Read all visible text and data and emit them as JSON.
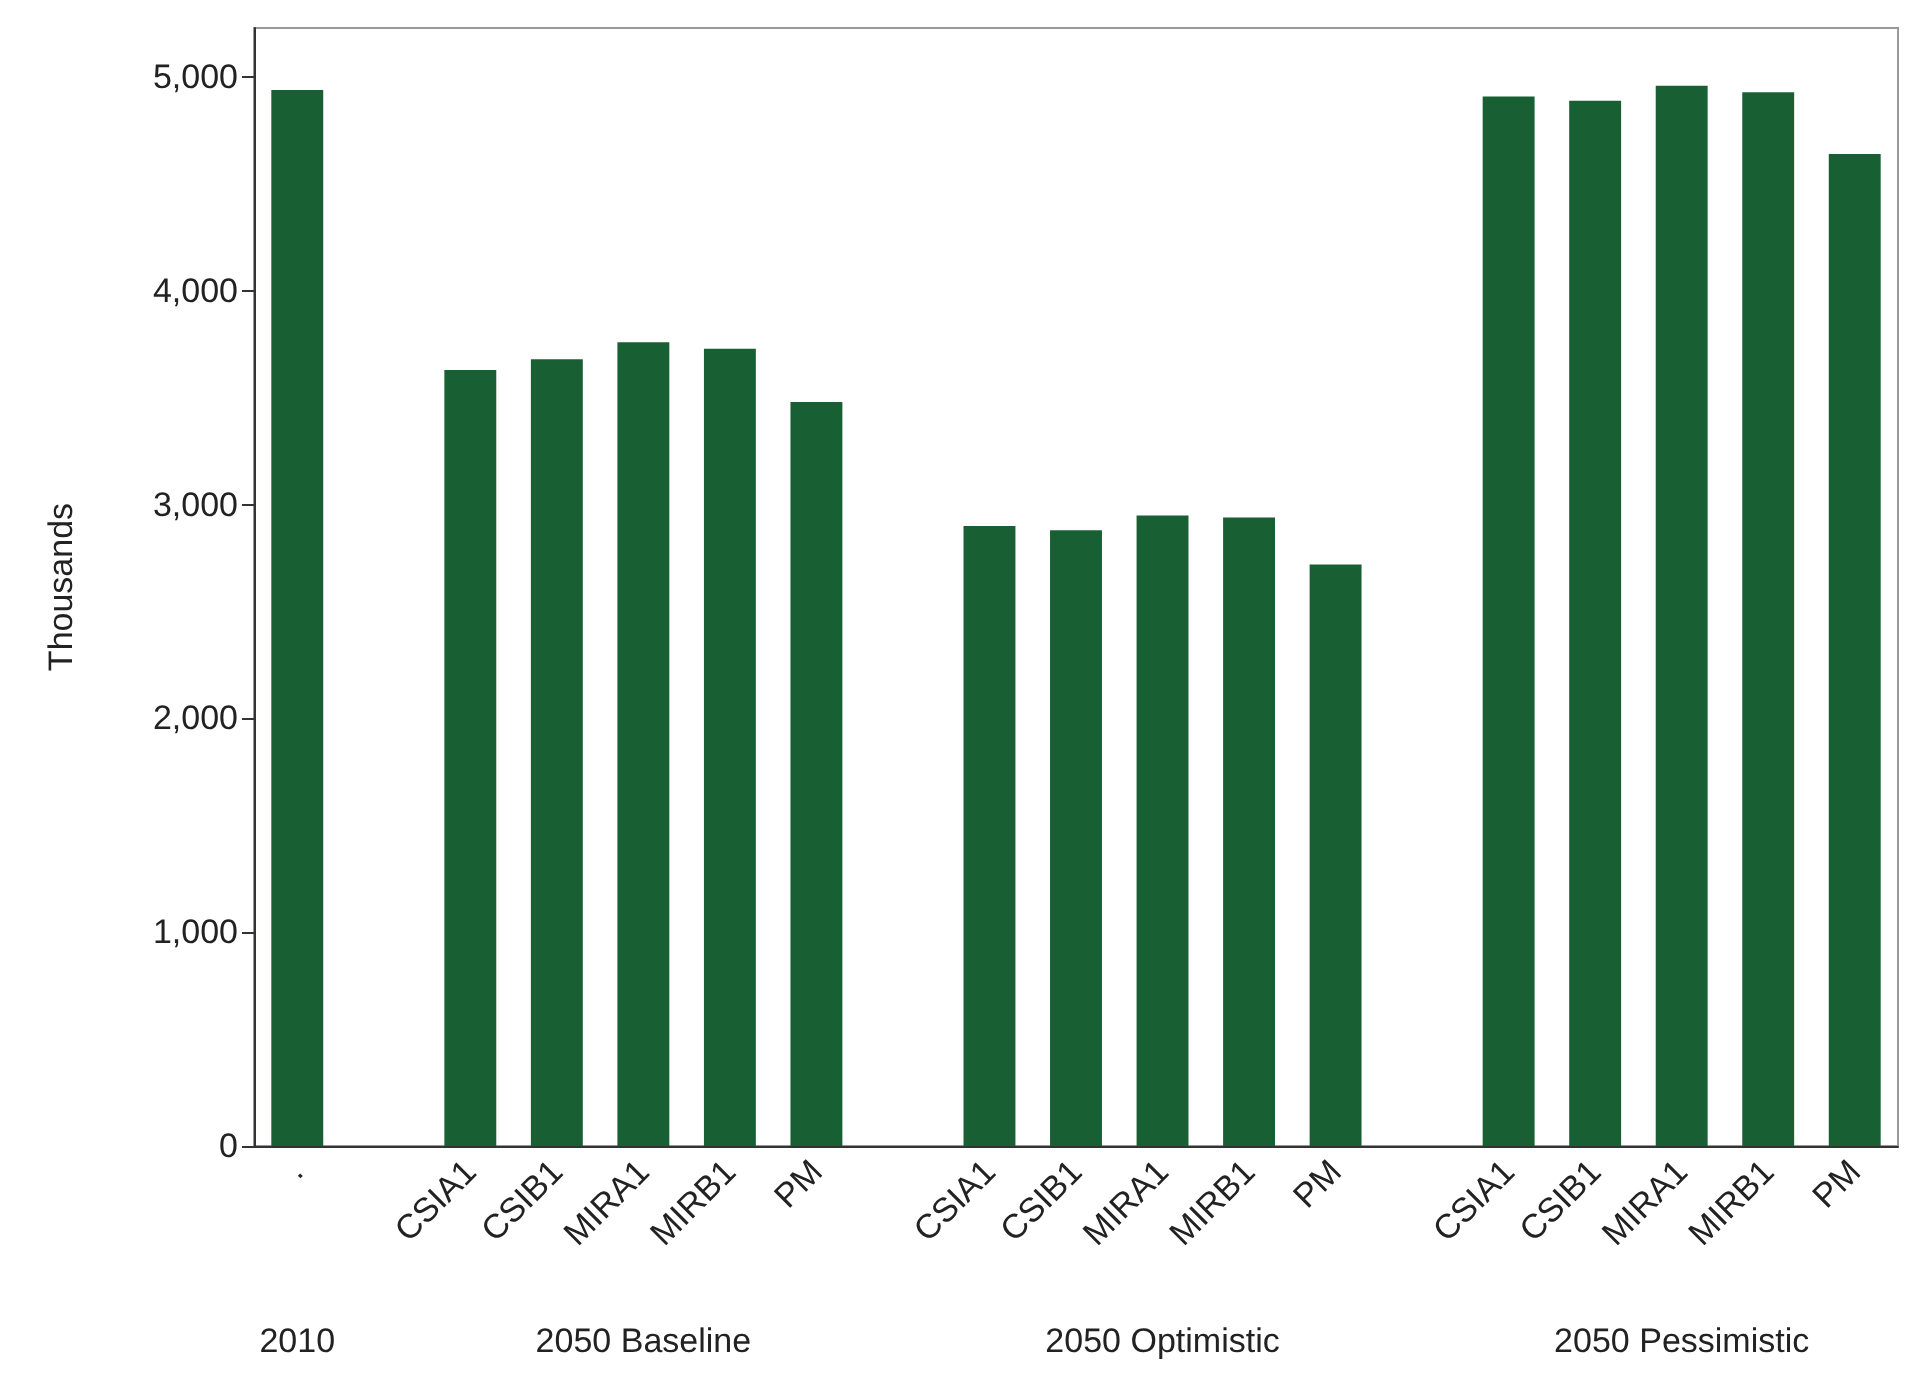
{
  "chart_data": {
    "type": "bar",
    "ylabel": "Thousands",
    "categories": [
      ".",
      null,
      "CSIA1",
      "CSIB1",
      "MIRA1",
      "MIRB1",
      "PM",
      null,
      "CSIA1",
      "CSIB1",
      "MIRA1",
      "MIRB1",
      "PM",
      null,
      "CSIA1",
      "CSIB1",
      "MIRA1",
      "MIRB1",
      "PM"
    ],
    "values": [
      4940,
      null,
      3630,
      3680,
      3760,
      3730,
      3480,
      null,
      2900,
      2880,
      2950,
      2940,
      2720,
      null,
      4910,
      4890,
      4960,
      4930,
      4640
    ],
    "color": "#186034",
    "ylim": [
      0,
      5230
    ],
    "yticks": [
      {
        "value": 0,
        "label": "0"
      },
      {
        "value": 1000,
        "label": "1,000"
      },
      {
        "value": 2000,
        "label": "2,000"
      },
      {
        "value": 3000,
        "label": "3,000"
      },
      {
        "value": 4000,
        "label": "4,000"
      },
      {
        "value": 5000,
        "label": "5,000"
      }
    ],
    "annotations": [
      "2010",
      "2050 Baseline",
      "2050 Optimistic",
      "2050 Pessimistic"
    ],
    "grid": false
  }
}
